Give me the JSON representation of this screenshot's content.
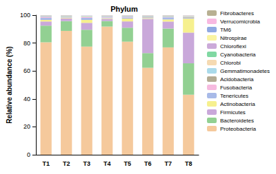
{
  "chart_data": {
    "type": "bar",
    "title": "Phylum",
    "y_label": "Relative abundance (%)",
    "stacked": true,
    "legend": "right",
    "grid": false,
    "categories": [
      "T1",
      "T2",
      "T3",
      "T4",
      "T5",
      "T6",
      "T7",
      "T8"
    ],
    "ylim": [
      0,
      100
    ],
    "yticks": [
      0,
      20,
      40,
      60,
      80,
      100
    ],
    "series": [
      {
        "name": "Proteobacteria",
        "color": "#f5c99c",
        "values": [
          80.5,
          88.7,
          77.5,
          91.8,
          81,
          62.3,
          76.9,
          43
        ]
      },
      {
        "name": "Bacteroidetes",
        "color": "#92d092",
        "values": [
          12,
          7,
          12,
          4,
          10,
          10.5,
          13.5,
          22.5
        ]
      },
      {
        "name": "Firmicutes",
        "color": "#c9a8da",
        "values": [
          3,
          2,
          5,
          1.5,
          4.5,
          24.5,
          5,
          22
        ]
      },
      {
        "name": "Actinobacteria",
        "color": "#f6f08e",
        "values": [
          1,
          0.5,
          2,
          0.5,
          2,
          0.5,
          1.5,
          10
        ]
      },
      {
        "name": "Tenericutes",
        "color": "#a8bae8",
        "values": [
          1.5,
          0.3,
          1.5,
          0.5,
          0.8,
          0.3,
          1.5,
          0.5
        ]
      },
      {
        "name": "Fusobacteria",
        "color": "#f6badf",
        "values": [
          0.5,
          0.2,
          0.5,
          0.3,
          0.3,
          0.2,
          0.3,
          0.2
        ]
      },
      {
        "name": "Acidobacteria",
        "color": "#b3ab93",
        "values": [
          0.3,
          0.2,
          0.2,
          0.2,
          0.2,
          0.5,
          0.2,
          0.5
        ]
      },
      {
        "name": "Gemmatimonadetes",
        "color": "#aadaea",
        "values": [
          0.2,
          0.2,
          0.2,
          0.2,
          0.2,
          0.2,
          0.2,
          0.2
        ]
      },
      {
        "name": "Chlorobi",
        "color": "#f5dab2",
        "values": [
          0.1,
          0.1,
          0.1,
          0.1,
          0.1,
          0.1,
          0.1,
          0.1
        ]
      },
      {
        "name": "Cyanobacteria",
        "color": "#80d8a2",
        "values": [
          0.2,
          0.2,
          0.2,
          0.2,
          0.2,
          0.2,
          0.2,
          0.2
        ]
      },
      {
        "name": "Chloroflexi",
        "color": "#cbaad9",
        "values": [
          0.2,
          0.2,
          0.2,
          0.2,
          0.2,
          0.2,
          0.2,
          0.2
        ]
      },
      {
        "name": "Nitrospirae",
        "color": "#faf4a2",
        "values": [
          0.1,
          0.1,
          0.1,
          0.1,
          0.1,
          0.1,
          0.1,
          0.1
        ]
      },
      {
        "name": "TM6",
        "color": "#90a9e2",
        "values": [
          0.1,
          0.1,
          0.1,
          0.1,
          0.1,
          0.1,
          0.1,
          0.1
        ]
      },
      {
        "name": "Verrucomicrobia",
        "color": "#f8b9e1",
        "values": [
          0.1,
          0.1,
          0.1,
          0.1,
          0.1,
          0.1,
          0.1,
          0.1
        ]
      },
      {
        "name": "Fibrobacteres",
        "color": "#b8b092",
        "values": [
          0.1,
          0.1,
          0.1,
          0.1,
          0.1,
          0.1,
          0.1,
          0.1
        ]
      }
    ]
  }
}
